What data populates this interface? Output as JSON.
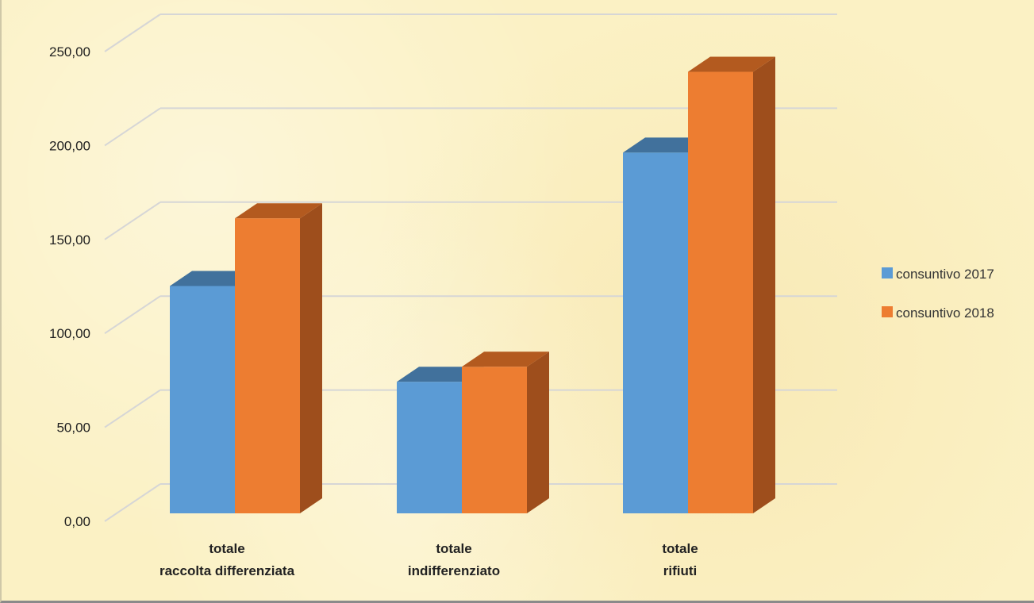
{
  "chart_data": {
    "type": "bar",
    "categories": [
      [
        "totale",
        "raccolta differenziata"
      ],
      [
        "totale",
        "indifferenziato"
      ],
      [
        "totale",
        "rifiuti"
      ]
    ],
    "series": [
      {
        "name": "consuntivo 2017",
        "values": [
          121,
          70,
          192
        ],
        "color": "#5b9bd5",
        "top": "#41719c",
        "side": "#41719c"
      },
      {
        "name": "consuntivo 2018",
        "values": [
          157,
          78,
          235
        ],
        "color": "#ed7d31",
        "top": "#b35a1f",
        "side": "#9e4e1c"
      }
    ],
    "y_ticks": [
      "0,00",
      "50,00",
      "100,00",
      "150,00",
      "200,00",
      "250,00"
    ],
    "ylim": [
      0,
      250
    ],
    "grid": true,
    "legend": "right",
    "title": "",
    "xlabel": "",
    "ylabel": ""
  }
}
